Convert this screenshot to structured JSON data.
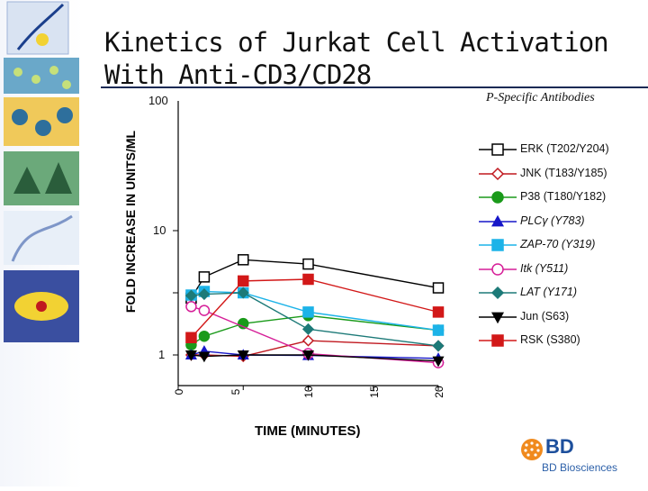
{
  "slide": {
    "title_line1": "Kinetics of Jurkat Cell Activation",
    "title_line2": "With Anti-CD3/CD28",
    "subtitle": "P-Specific Antibodies",
    "logo_text": "BD",
    "logo_subtext": "BD Biosciences"
  },
  "chart_data": {
    "type": "line",
    "title": "",
    "xlabel": "TIME (MINUTES)",
    "ylabel": "FOLD INCREASE IN UNITS/ML",
    "xlim": [
      0,
      20
    ],
    "ylim": [
      1,
      100
    ],
    "yscale": "log",
    "grid": false,
    "legend_position": "right",
    "x_ticks": [
      "0",
      "5",
      "10",
      "15",
      "20"
    ],
    "y_ticks": [
      "1",
      "10",
      "100"
    ],
    "series": [
      {
        "name": "ERK (T202/Y204)",
        "marker": "square-open",
        "color": "#000000",
        "x": [
          1,
          2,
          5,
          10,
          20
        ],
        "y": [
          8.2,
          18,
          34,
          29,
          12
        ]
      },
      {
        "name": "JNK (T183/Y185)",
        "marker": "diamond-open",
        "color": "#c0181f",
        "x": [
          1,
          2,
          5,
          10,
          20
        ],
        "y": [
          1.0,
          1.0,
          0.95,
          1.7,
          1.4
        ]
      },
      {
        "name": "P38 (T180/Y182)",
        "marker": "circle-filled",
        "color": "#1a9a1a",
        "x": [
          1,
          2,
          5,
          10,
          20
        ],
        "y": [
          1.45,
          2.0,
          3.2,
          4.3,
          2.5
        ]
      },
      {
        "name": "PLCγ (Y783)",
        "marker": "triangle-filled",
        "color": "#1616c8",
        "x": [
          1,
          2,
          5,
          10,
          20
        ],
        "y": [
          1.0,
          1.15,
          1.0,
          0.98,
          0.88
        ]
      },
      {
        "name": "ZAP-70 (Y319)",
        "marker": "square-filled",
        "color": "#1cb3e8",
        "x": [
          1,
          2,
          5,
          10,
          20
        ],
        "y": [
          9.2,
          10.5,
          10.0,
          4.9,
          2.5
        ]
      },
      {
        "name": "Itk (Y511)",
        "marker": "circle-open",
        "color": "#d61f98",
        "x": [
          1,
          2,
          5,
          10,
          20
        ],
        "y": [
          6.0,
          5.2,
          null,
          1.05,
          0.75
        ]
      },
      {
        "name": "LAT (Y171)",
        "marker": "diamond-filled",
        "color": "#1d7a78",
        "x": [
          1,
          2,
          5,
          10,
          20
        ],
        "y": [
          9.0,
          9.5,
          10.0,
          2.6,
          1.4
        ]
      },
      {
        "name": "Jun (S63)",
        "marker": "triangle-down-filled",
        "color": "#000000",
        "x": [
          1,
          2,
          5,
          10,
          20
        ],
        "y": [
          1.0,
          0.95,
          1.0,
          1.0,
          0.8
        ]
      },
      {
        "name": "RSK (S380)",
        "marker": "square-filled",
        "color": "#d21818",
        "x": [
          1,
          5,
          10,
          20
        ],
        "y": [
          1.9,
          15.5,
          16.5,
          4.9
        ]
      }
    ]
  }
}
